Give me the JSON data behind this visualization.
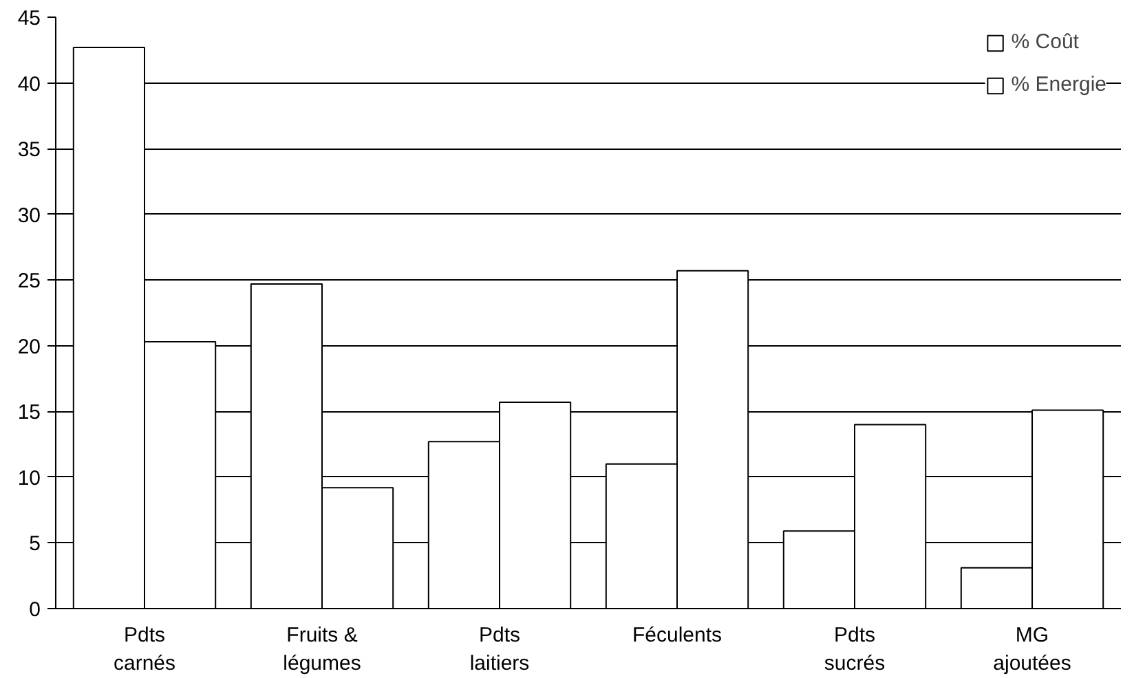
{
  "chart_data": {
    "type": "bar",
    "categories": [
      "Pdts\ncarnés",
      "Fruits &\nlégumes",
      "Pdts\nlaitiers",
      "Féculents",
      "Pdts\nsucrés",
      "MG\najoutées"
    ],
    "series": [
      {
        "name": "% Coût",
        "color": "#ffffff",
        "values": [
          42.7,
          24.7,
          12.7,
          11.0,
          5.9,
          3.1
        ]
      },
      {
        "name": "% Energie",
        "color": "#ffffff",
        "values": [
          20.3,
          9.2,
          15.7,
          25.7,
          14.0,
          15.1
        ]
      }
    ],
    "ylim": [
      0,
      45
    ],
    "yticks": [
      0,
      5,
      10,
      15,
      20,
      25,
      30,
      35,
      40,
      45
    ],
    "grid": "y",
    "legend": "top right"
  }
}
